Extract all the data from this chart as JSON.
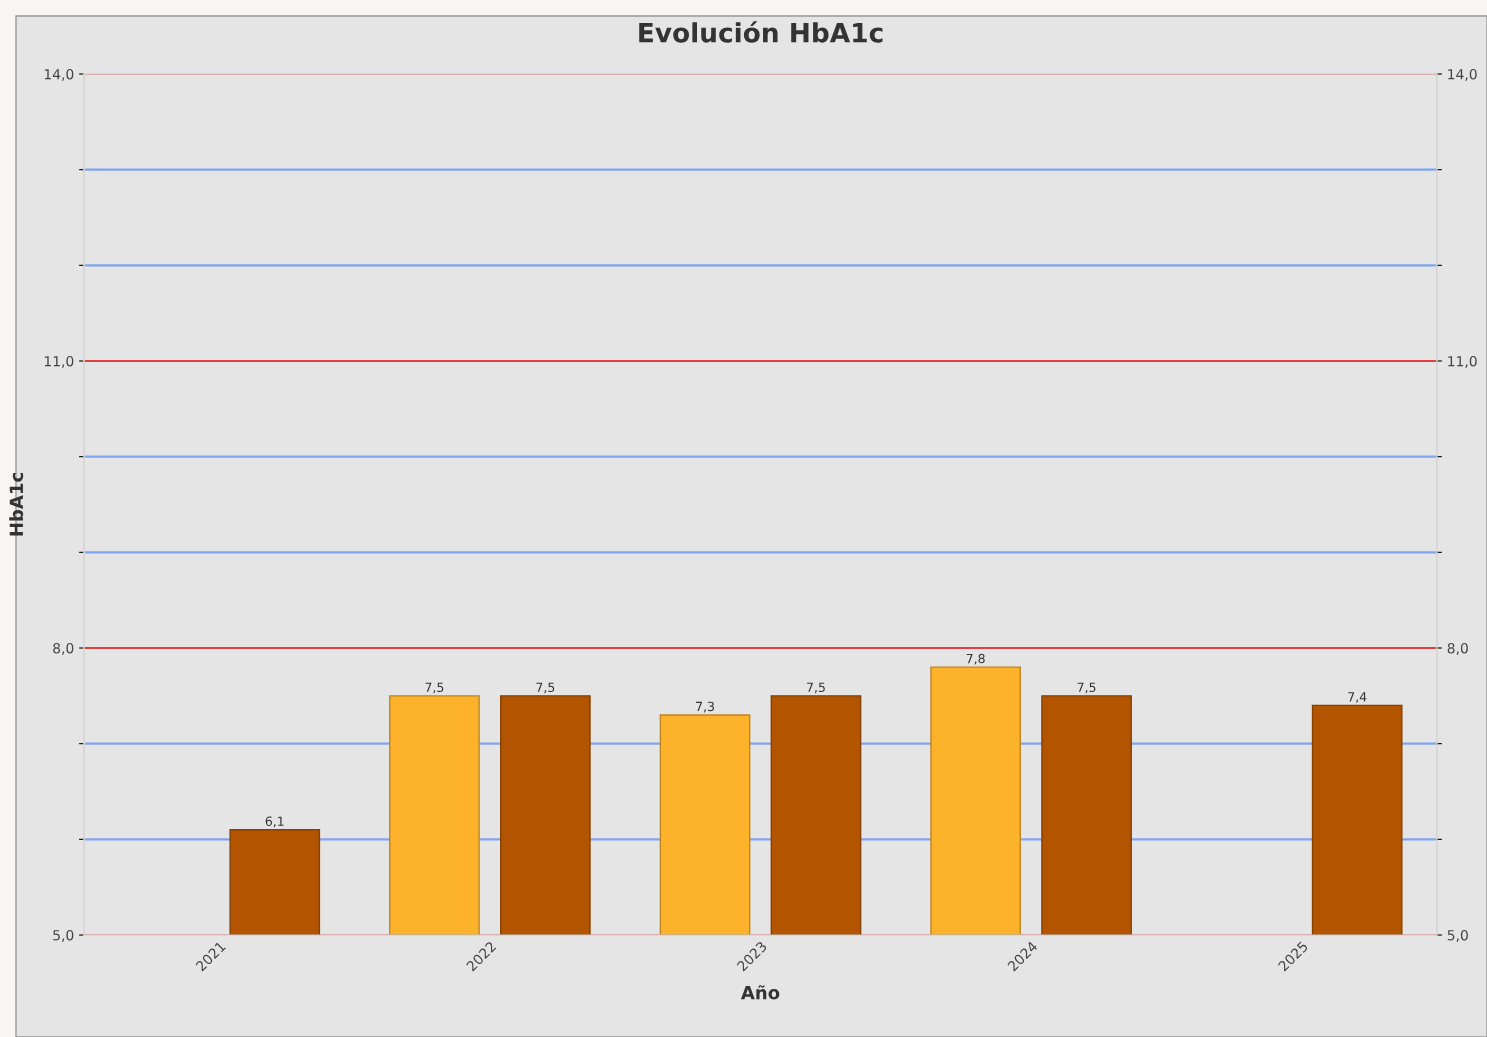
{
  "chart_data": {
    "type": "bar",
    "title": "Evolución HbA1c",
    "xlabel": "Año",
    "ylabel": "HbA1c",
    "categories": [
      "2021",
      "2022",
      "2023",
      "2024",
      "2025"
    ],
    "series": [
      {
        "color": "#fdb22c",
        "values": [
          null,
          7.5,
          7.3,
          7.8,
          null
        ],
        "value_labels": [
          null,
          "7,5",
          "7,3",
          "7,8",
          null
        ]
      },
      {
        "color": "#b35500",
        "values": [
          6.1,
          7.5,
          7.5,
          7.5,
          7.4
        ],
        "value_labels": [
          "6,1",
          "7,5",
          "7,5",
          "7,5",
          "7,4"
        ]
      }
    ],
    "ylim": [
      5,
      14
    ],
    "yticks": [
      {
        "value": 5,
        "label": "5,0"
      },
      {
        "value": 6,
        "label": null
      },
      {
        "value": 7,
        "label": null
      },
      {
        "value": 8,
        "label": "8,0"
      },
      {
        "value": 9,
        "label": null
      },
      {
        "value": 10,
        "label": null
      },
      {
        "value": 11,
        "label": "11,0"
      },
      {
        "value": 12,
        "label": null
      },
      {
        "value": 13,
        "label": null
      },
      {
        "value": 14,
        "label": "14,0"
      }
    ],
    "y2lim": [
      5,
      14
    ],
    "y2ticks": [
      {
        "value": 5,
        "label": "5,0"
      },
      {
        "value": 6,
        "label": null
      },
      {
        "value": 7,
        "label": null
      },
      {
        "value": 8,
        "label": "8,0"
      },
      {
        "value": 9,
        "label": null
      },
      {
        "value": 10,
        "label": null
      },
      {
        "value": 11,
        "label": "11,0"
      },
      {
        "value": 12,
        "label": null
      },
      {
        "value": 13,
        "label": null
      },
      {
        "value": 14,
        "label": "14,0"
      }
    ],
    "grid": "y",
    "legend": false
  }
}
